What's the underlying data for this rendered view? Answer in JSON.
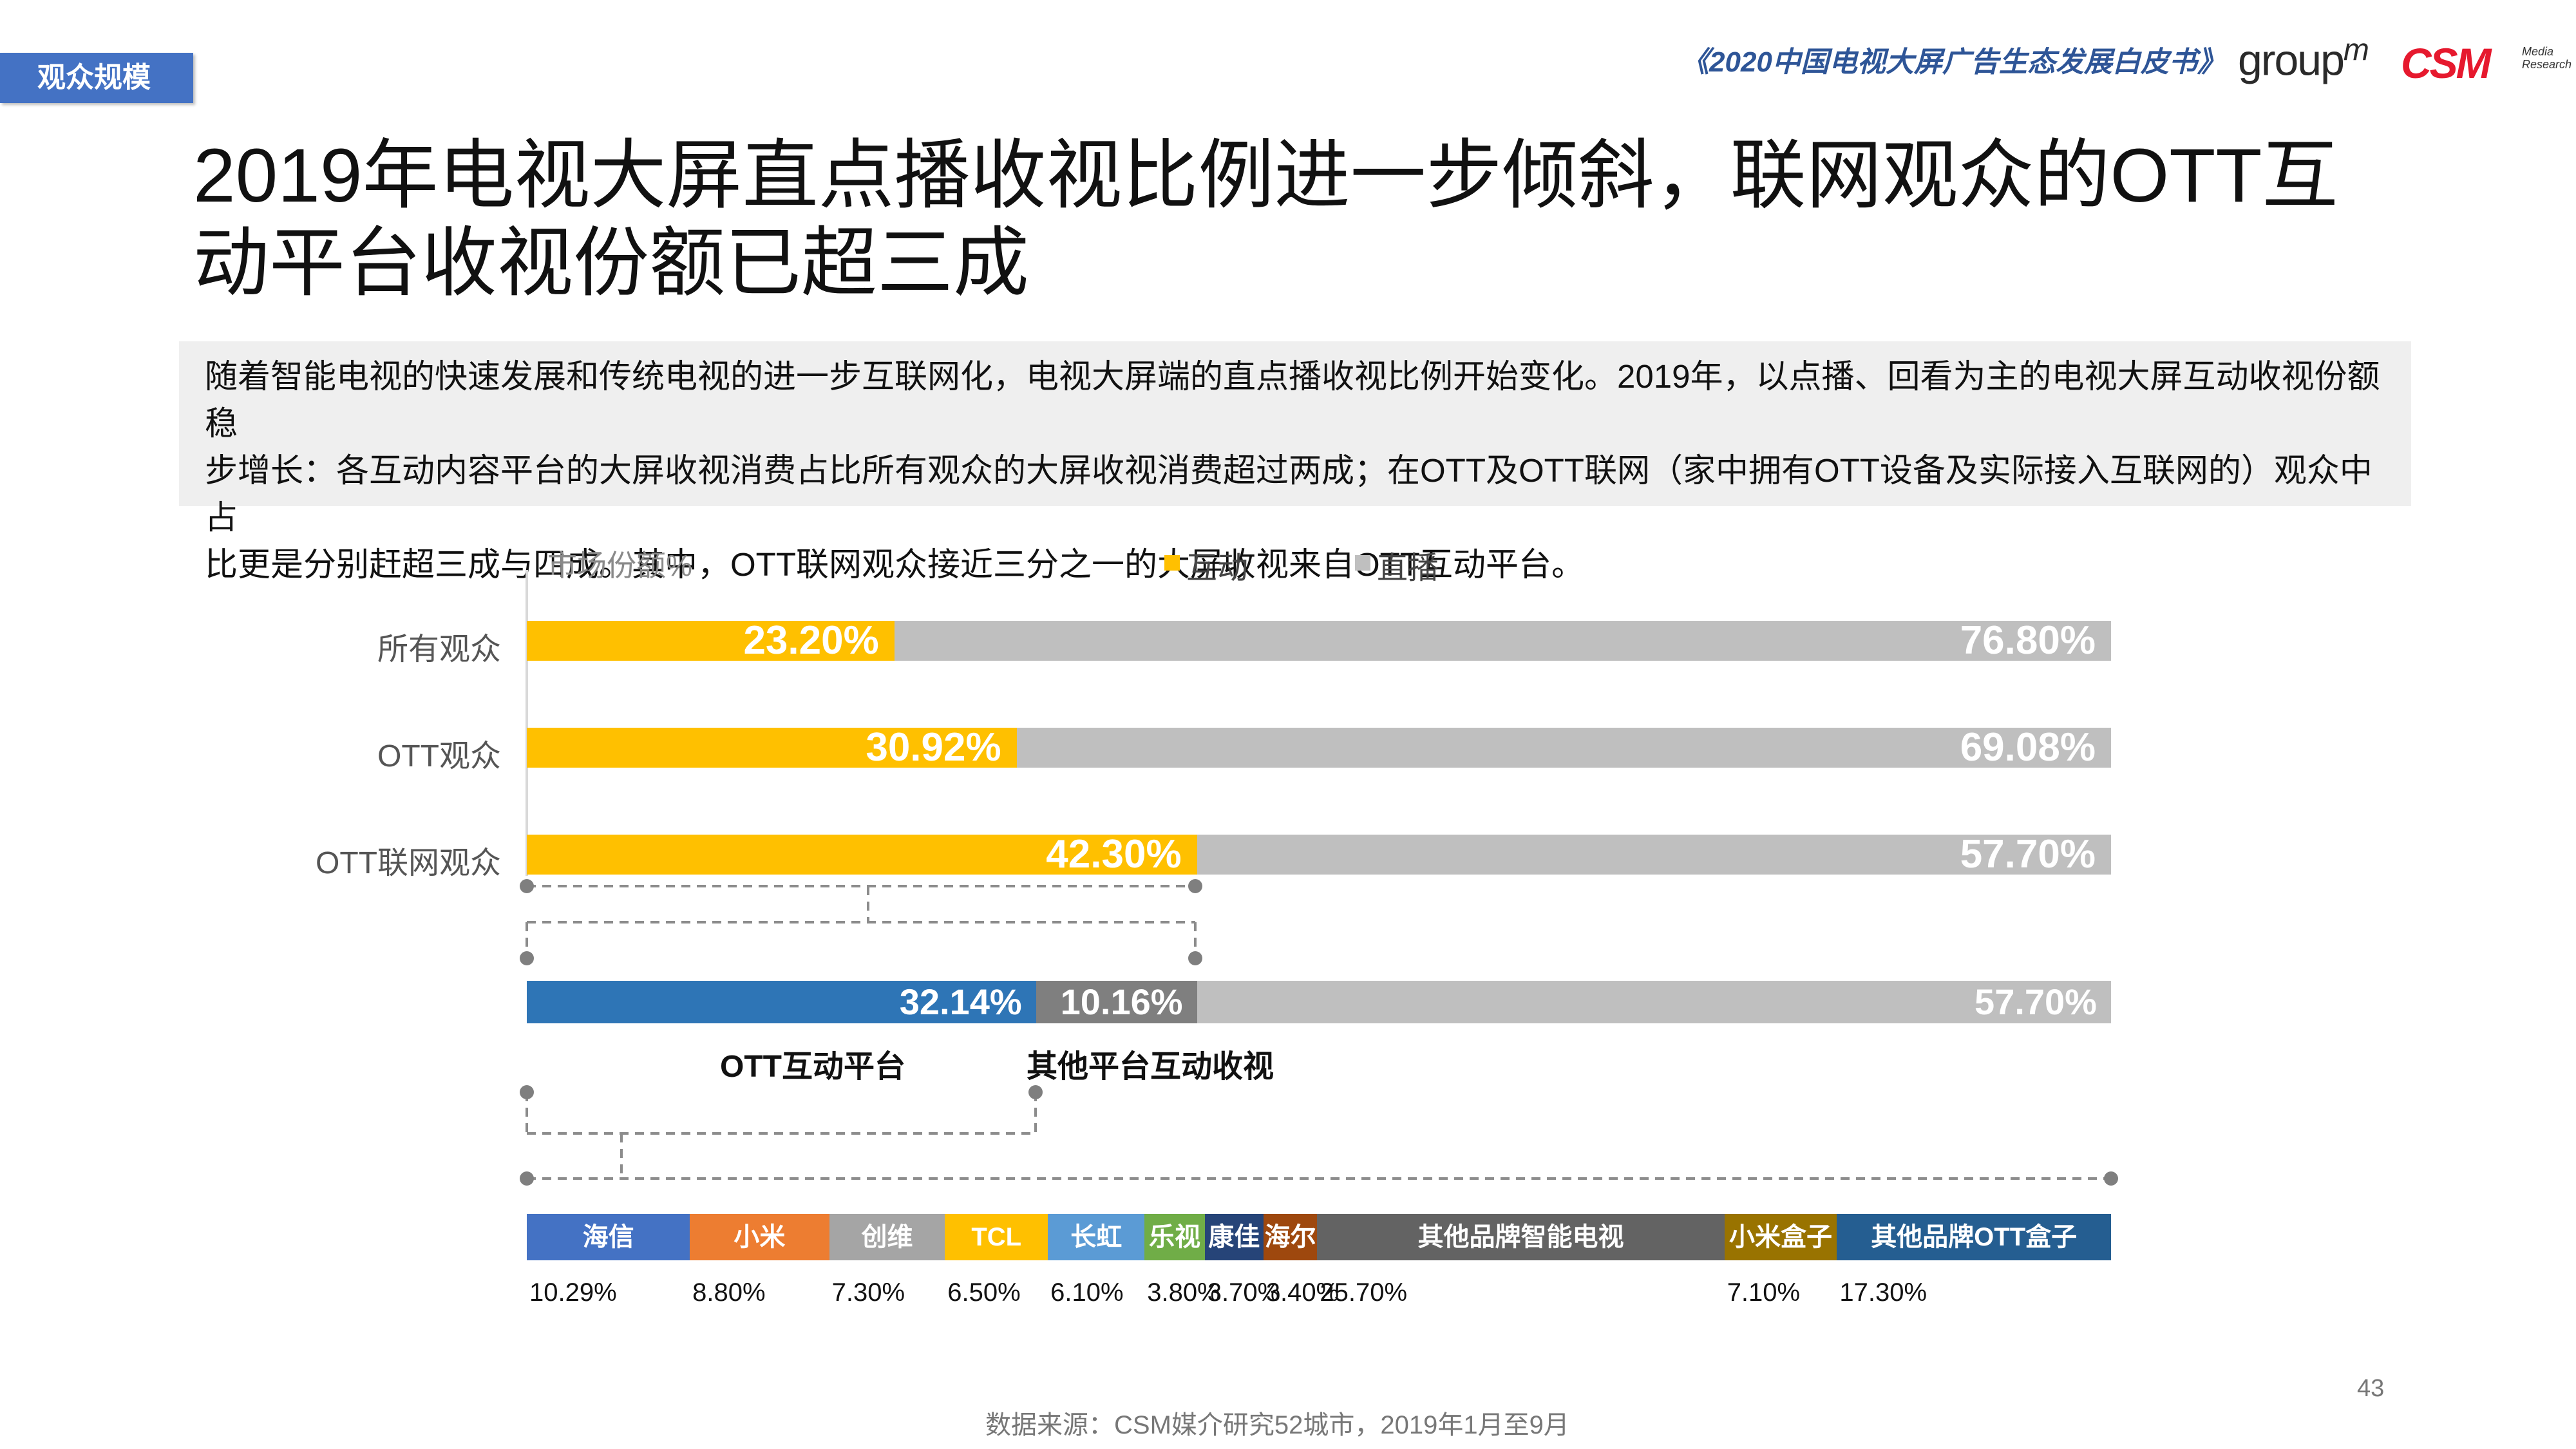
{
  "header": {
    "section_tag": "观众规模",
    "report_title": "《2020中国电视大屏广告生态发展白皮书》",
    "logo_groupm": "group",
    "logo_groupm_m": "m",
    "logo_csm": "CSM",
    "logo_csm_sub1": "Media",
    "logo_csm_sub2": "Research"
  },
  "headline": {
    "line1": "2019年电视大屏直点播收视比例进一步倾斜，联网观众的OTT互",
    "line2": "动平台收视份额已超三成"
  },
  "summary": {
    "line1": "随着智能电视的快速发展和传统电视的进一步互联网化，电视大屏端的直点播收视比例开始变化。2019年，以点播、回看为主的电视大屏互动收视份额稳",
    "line2": "步增长：各互动内容平台的大屏收视消费占比所有观众的大屏收视消费超过两成；在OTT及OTT联网（家中拥有OTT设备及实际接入互联网的）观众中占",
    "line3": "比更是分别赶超三成与四成。其中，OTT联网观众接近三分之一的大屏收视来自OTT互动平台。"
  },
  "chart_data": {
    "type": "bar",
    "ylabel": "市场份额%",
    "legend": [
      {
        "name": "互动",
        "color": "#ffc000"
      },
      {
        "name": "直播",
        "color": "#bfbfbf"
      }
    ],
    "main": {
      "categories": [
        "所有观众",
        "OTT观众",
        "OTT联网观众"
      ],
      "series": [
        {
          "name": "互动",
          "color": "#ffc000",
          "values": [
            23.2,
            30.92,
            42.3
          ],
          "labels": [
            "23.20%",
            "30.92%",
            "42.30%"
          ]
        },
        {
          "name": "直播",
          "color": "#bfbfbf",
          "values": [
            76.8,
            69.08,
            57.7
          ],
          "labels": [
            "76.80%",
            "69.08%",
            "57.70%"
          ]
        }
      ]
    },
    "breakdown": {
      "segments": [
        {
          "value": 32.14,
          "label": "32.14%",
          "color": "#2e75b6"
        },
        {
          "value": 10.16,
          "label": "10.16%",
          "color": "#7f7f7f"
        },
        {
          "value": 57.7,
          "label": "57.70%",
          "color": "#bfbfbf"
        }
      ],
      "sub_labels": [
        "OTT互动平台",
        "其他平台互动收视"
      ]
    },
    "platforms": {
      "segments": [
        {
          "name": "海信",
          "value": 10.29,
          "label": "10.29%",
          "color": "#4472c4"
        },
        {
          "name": "小米",
          "value": 8.8,
          "label": "8.80%",
          "color": "#ed7d31"
        },
        {
          "name": "创维",
          "value": 7.3,
          "label": "7.30%",
          "color": "#a5a5a5"
        },
        {
          "name": "TCL",
          "value": 6.5,
          "label": "6.50%",
          "color": "#ffc000"
        },
        {
          "name": "长虹",
          "value": 6.1,
          "label": "6.10%",
          "color": "#5b9bd5"
        },
        {
          "name": "乐视",
          "value": 3.8,
          "label": "3.80%",
          "color": "#70ad47"
        },
        {
          "name": "康佳",
          "value": 3.7,
          "label": "3.70%",
          "color": "#264478"
        },
        {
          "name": "海尔",
          "value": 3.4,
          "label": "3.40%",
          "color": "#9e480e"
        },
        {
          "name": "其他品牌智能电视",
          "value": 25.7,
          "label": "25.70%",
          "color": "#636363"
        },
        {
          "name": "小米盒子",
          "value": 7.1,
          "label": "7.10%",
          "color": "#997300"
        },
        {
          "name": "其他品牌OTT盒子",
          "value": 17.3,
          "label": "17.30%",
          "color": "#255e91"
        }
      ]
    }
  },
  "footer": {
    "page_number": "43",
    "source": "数据来源：CSM媒介研究52城市，2019年1月至9月"
  }
}
